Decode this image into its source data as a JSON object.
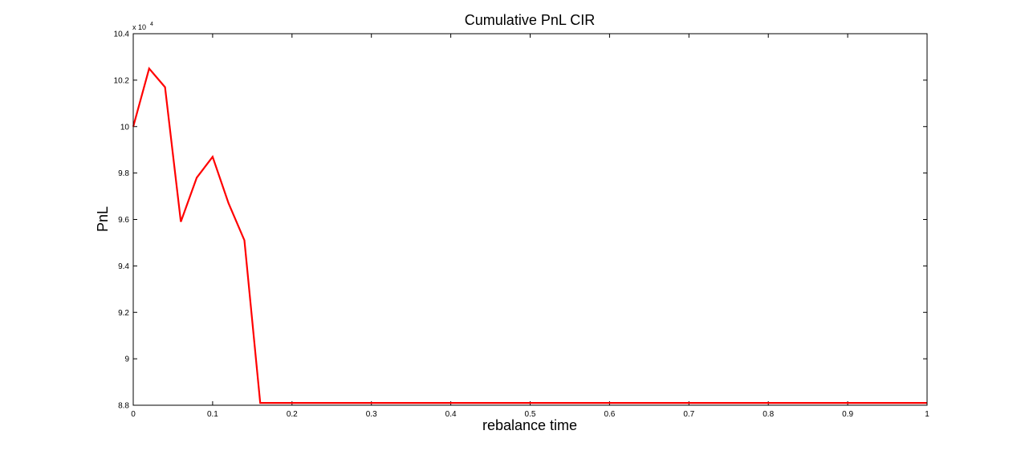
{
  "chart_data": {
    "type": "line",
    "title": "Cumulative PnL CIR",
    "xlabel": "rebalance time",
    "ylabel": "PnL",
    "y_multiplier_label": "x 10",
    "y_multiplier_exponent": "4",
    "xlim": [
      0,
      1
    ],
    "ylim": [
      8.8,
      10.4
    ],
    "x_ticks": [
      "0",
      "0.1",
      "0.2",
      "0.3",
      "0.4",
      "0.5",
      "0.6",
      "0.7",
      "0.8",
      "0.9",
      "1"
    ],
    "y_ticks": [
      "8.8",
      "9",
      "9.2",
      "9.4",
      "9.6",
      "9.8",
      "10",
      "10.2",
      "10.4"
    ],
    "grid": false,
    "legend": "none",
    "series": [
      {
        "color": "#ff0000",
        "x": [
          0,
          0.02,
          0.04,
          0.06,
          0.08,
          0.1,
          0.12,
          0.14,
          0.16,
          1.0
        ],
        "y": [
          10.0,
          10.25,
          10.17,
          9.59,
          9.78,
          9.87,
          9.67,
          9.51,
          8.81,
          8.81
        ]
      }
    ]
  }
}
